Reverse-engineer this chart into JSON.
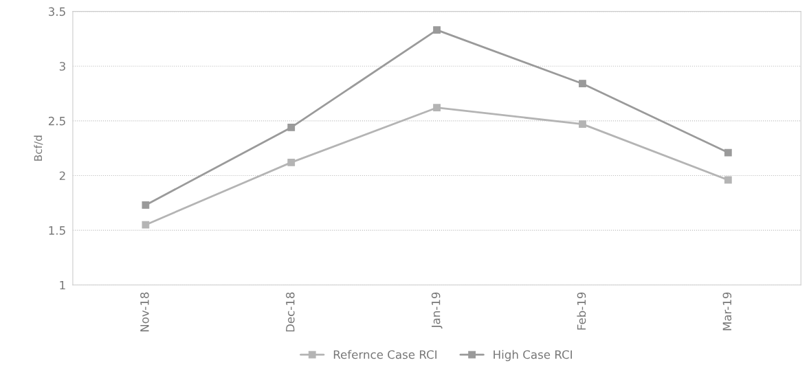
{
  "chart_data": {
    "type": "line",
    "ylabel": "Bcf/d",
    "categories": [
      "Nov-18",
      "Dec-18",
      "Jan-19",
      "Feb-19",
      "Mar-19"
    ],
    "series": [
      {
        "name": "Refernce Case RCI",
        "color": "#b4b4b4",
        "values": [
          1.55,
          2.12,
          2.62,
          2.47,
          1.96
        ]
      },
      {
        "name": "High Case RCI",
        "color": "#9a9a9a",
        "values": [
          1.73,
          2.44,
          3.33,
          2.84,
          2.21
        ]
      }
    ],
    "ylim": [
      1,
      3.5
    ],
    "yticks": [
      1,
      1.5,
      2,
      2.5,
      3,
      3.5
    ],
    "grid": "y",
    "legend": "bottom",
    "marker": "square",
    "line_style": "solid"
  }
}
